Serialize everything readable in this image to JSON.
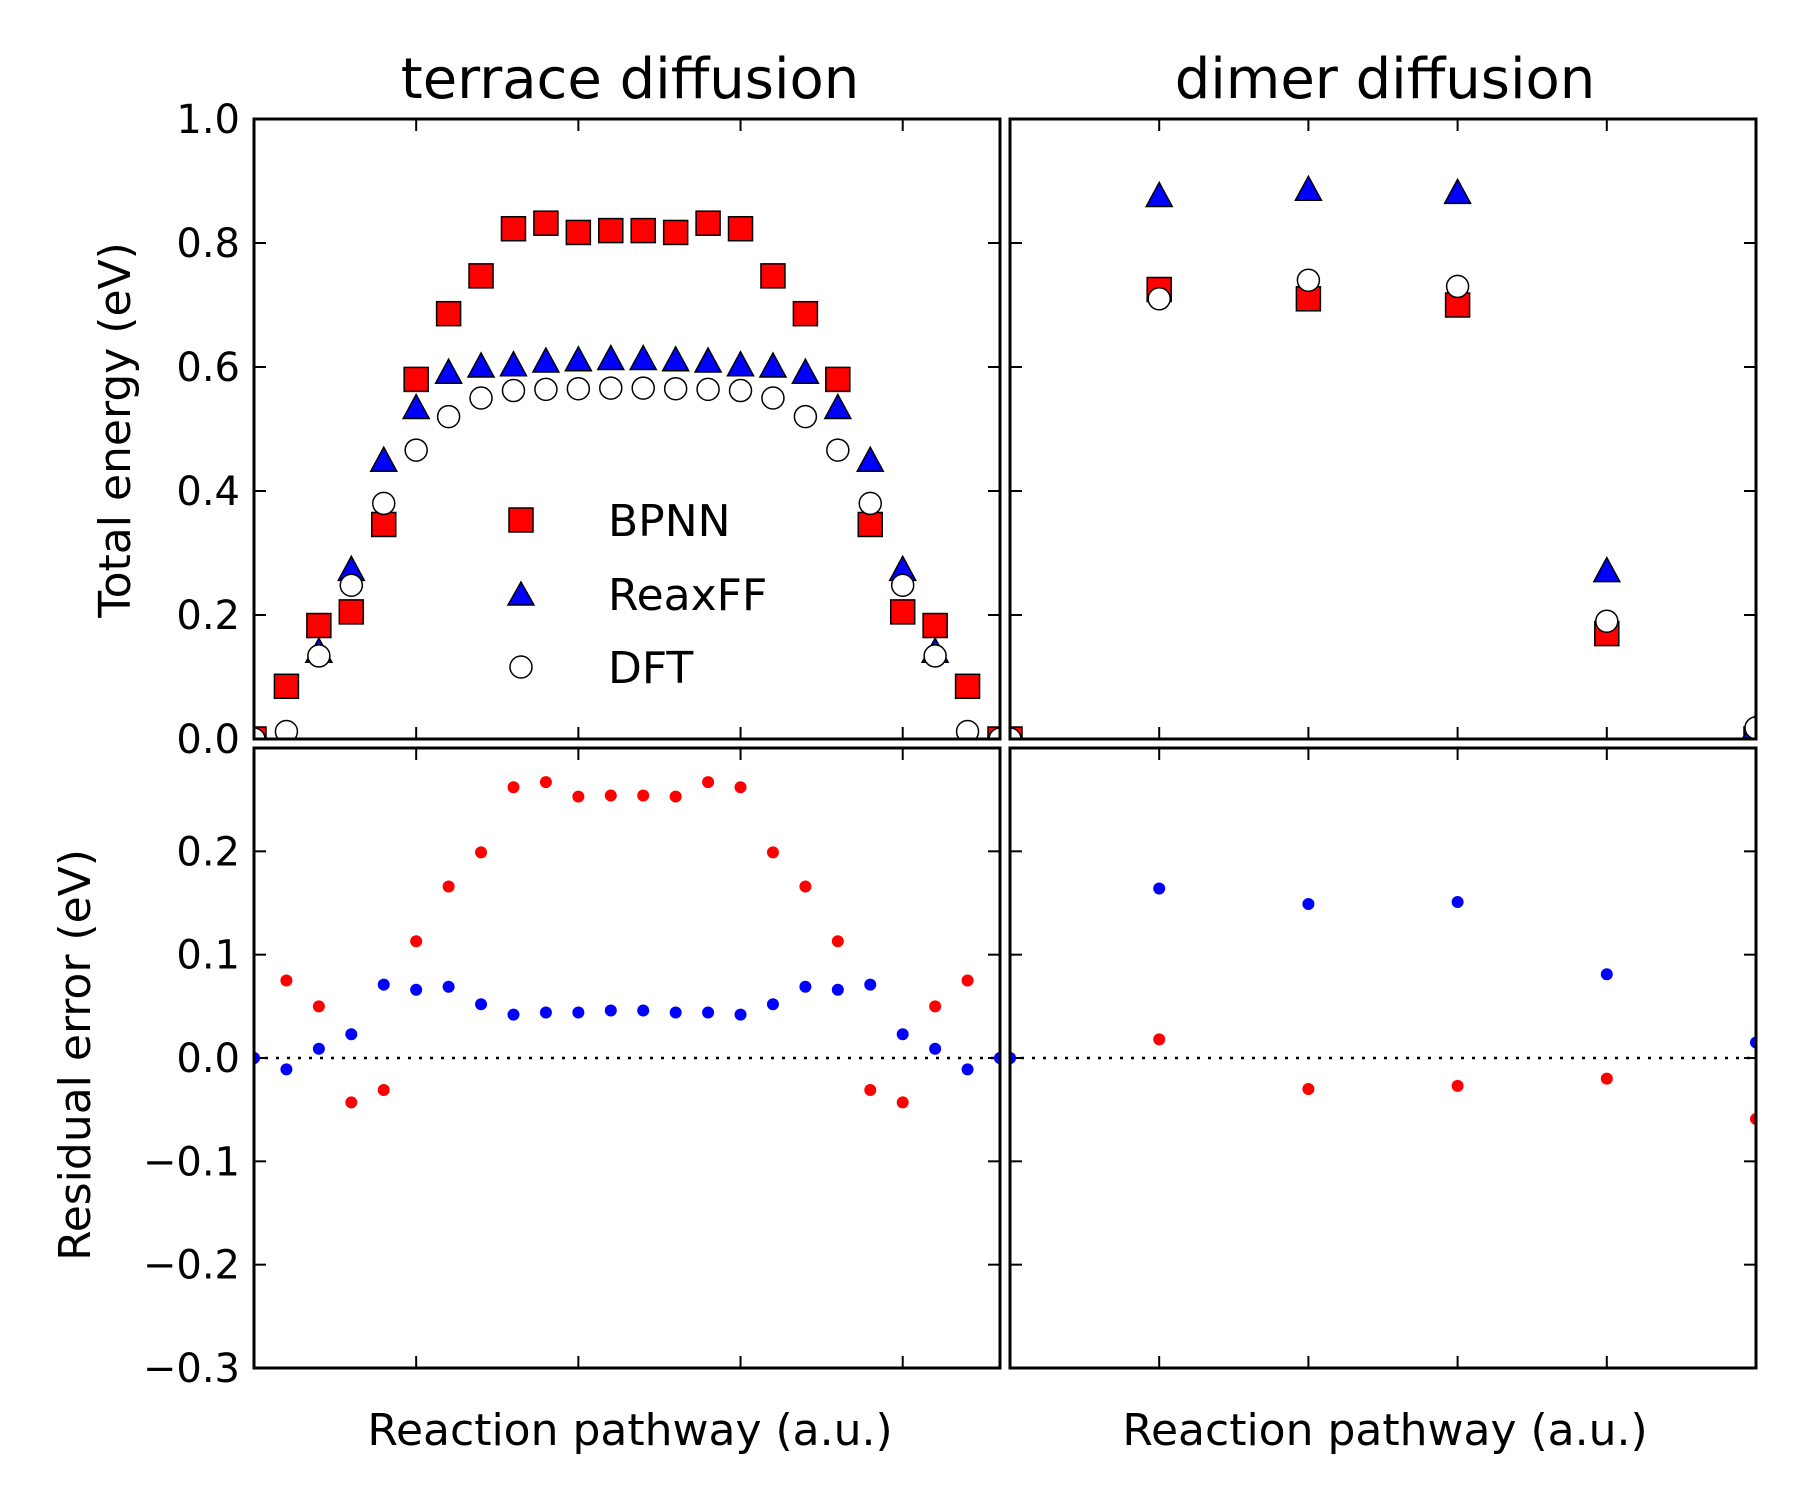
{
  "chart_data": [
    {
      "type": "scatter",
      "panel": "top-left",
      "title": "terrace diffusion",
      "xlabel": "",
      "ylabel": "Total energy (eV)",
      "xlim": [
        0,
        23
      ],
      "ylim": [
        0.0,
        1.0
      ],
      "yticks": [
        "0.0",
        "0.2",
        "0.4",
        "0.6",
        "0.8",
        "1.0"
      ],
      "legend": {
        "placement": "center",
        "entries": [
          "BPNN",
          "ReaxFF",
          "DFT"
        ]
      },
      "series": [
        {
          "name": "BPNN",
          "marker": "square",
          "color": "#ff0000",
          "x": [
            0,
            1,
            2,
            3,
            4,
            5,
            6,
            7,
            8,
            9,
            10,
            11,
            12,
            13,
            14,
            15,
            16,
            17,
            18,
            19,
            20,
            21,
            22,
            23
          ],
          "y": [
            0.0,
            0.085,
            0.183,
            0.205,
            0.346,
            0.58,
            0.686,
            0.747,
            0.823,
            0.832,
            0.817,
            0.82,
            0.82,
            0.817,
            0.832,
            0.823,
            0.747,
            0.686,
            0.58,
            0.346,
            0.205,
            0.183,
            0.085,
            0.0
          ]
        },
        {
          "name": "ReaxFF",
          "marker": "triangle",
          "color": "#0000ff",
          "x": [
            0,
            1,
            2,
            3,
            4,
            5,
            6,
            7,
            8,
            9,
            10,
            11,
            12,
            13,
            14,
            15,
            16,
            17,
            18,
            19,
            20,
            21,
            22,
            23
          ],
          "y": [
            0.0,
            0.005,
            0.14,
            0.272,
            0.448,
            0.533,
            0.59,
            0.6,
            0.602,
            0.608,
            0.61,
            0.612,
            0.612,
            0.61,
            0.608,
            0.602,
            0.6,
            0.59,
            0.533,
            0.448,
            0.272,
            0.14,
            0.005,
            0.0
          ]
        },
        {
          "name": "DFT",
          "marker": "circle",
          "color": "#ffffff",
          "x": [
            0,
            1,
            2,
            3,
            4,
            5,
            6,
            7,
            8,
            9,
            10,
            11,
            12,
            13,
            14,
            15,
            16,
            17,
            18,
            19,
            20,
            21,
            22,
            23
          ],
          "y": [
            0.0,
            0.012,
            0.134,
            0.248,
            0.38,
            0.466,
            0.52,
            0.55,
            0.562,
            0.564,
            0.565,
            0.566,
            0.566,
            0.565,
            0.564,
            0.562,
            0.55,
            0.52,
            0.466,
            0.38,
            0.248,
            0.134,
            0.012,
            0.0
          ]
        }
      ]
    },
    {
      "type": "scatter",
      "panel": "top-right",
      "title": "dimer diffusion",
      "xlabel": "",
      "ylabel": "",
      "xlim": [
        0,
        5
      ],
      "ylim": [
        0.0,
        1.0
      ],
      "series": [
        {
          "name": "BPNN",
          "marker": "square",
          "color": "#ff0000",
          "x": [
            0,
            1,
            2,
            3,
            4,
            5
          ],
          "y": [
            0.0,
            0.725,
            0.71,
            0.7,
            0.17,
            0.0
          ]
        },
        {
          "name": "ReaxFF",
          "marker": "triangle",
          "color": "#0000ff",
          "x": [
            0,
            1,
            2,
            3,
            4,
            5
          ],
          "y": [
            0.0,
            0.875,
            0.885,
            0.88,
            0.27,
            0.018
          ]
        },
        {
          "name": "DFT",
          "marker": "circle",
          "color": "#ffffff",
          "x": [
            0,
            1,
            2,
            3,
            4,
            5
          ],
          "y": [
            0.0,
            0.71,
            0.74,
            0.73,
            0.19,
            0.018
          ]
        }
      ]
    },
    {
      "type": "scatter",
      "panel": "bottom-left",
      "title": "",
      "xlabel": "Reaction pathway (a.u.)",
      "ylabel": "Residual error (eV)",
      "xlim": [
        0,
        23
      ],
      "ylim": [
        -0.3,
        0.3
      ],
      "yticks": [
        "−0.3",
        "−0.2",
        "−0.1",
        "0.0",
        "0.1",
        "0.2"
      ],
      "reference_line": {
        "y": 0.0,
        "style": "dotted"
      },
      "series": [
        {
          "name": "BPNN",
          "marker": "dot",
          "color": "#ff0000",
          "x": [
            0,
            1,
            2,
            3,
            4,
            5,
            6,
            7,
            8,
            9,
            10,
            11,
            12,
            13,
            14,
            15,
            16,
            17,
            18,
            19,
            20,
            21,
            22,
            23
          ],
          "y": [
            0.0,
            0.075,
            0.05,
            -0.043,
            -0.031,
            0.113,
            0.166,
            0.199,
            0.262,
            0.267,
            0.253,
            0.254,
            0.254,
            0.253,
            0.267,
            0.262,
            0.199,
            0.166,
            0.113,
            -0.031,
            -0.043,
            0.05,
            0.075,
            0.0
          ]
        },
        {
          "name": "ReaxFF",
          "marker": "dot",
          "color": "#0000ff",
          "x": [
            0,
            1,
            2,
            3,
            4,
            5,
            6,
            7,
            8,
            9,
            10,
            11,
            12,
            13,
            14,
            15,
            16,
            17,
            18,
            19,
            20,
            21,
            22,
            23
          ],
          "y": [
            0.0,
            -0.011,
            0.009,
            0.023,
            0.071,
            0.066,
            0.069,
            0.052,
            0.042,
            0.044,
            0.044,
            0.046,
            0.046,
            0.044,
            0.044,
            0.042,
            0.052,
            0.069,
            0.066,
            0.071,
            0.023,
            0.009,
            -0.011,
            0.0
          ]
        }
      ]
    },
    {
      "type": "scatter",
      "panel": "bottom-right",
      "title": "",
      "xlabel": "Reaction pathway (a.u.)",
      "ylabel": "",
      "xlim": [
        0,
        5
      ],
      "ylim": [
        -0.3,
        0.3
      ],
      "reference_line": {
        "y": 0.0,
        "style": "dotted"
      },
      "series": [
        {
          "name": "BPNN",
          "marker": "dot",
          "color": "#ff0000",
          "x": [
            0,
            1,
            2,
            3,
            4,
            5
          ],
          "y": [
            0.0,
            0.018,
            -0.03,
            -0.027,
            -0.02,
            -0.059
          ]
        },
        {
          "name": "ReaxFF",
          "marker": "dot",
          "color": "#0000ff",
          "x": [
            0,
            1,
            2,
            3,
            4,
            5
          ],
          "y": [
            0.0,
            0.164,
            0.149,
            0.151,
            0.081,
            0.015
          ]
        }
      ]
    }
  ]
}
